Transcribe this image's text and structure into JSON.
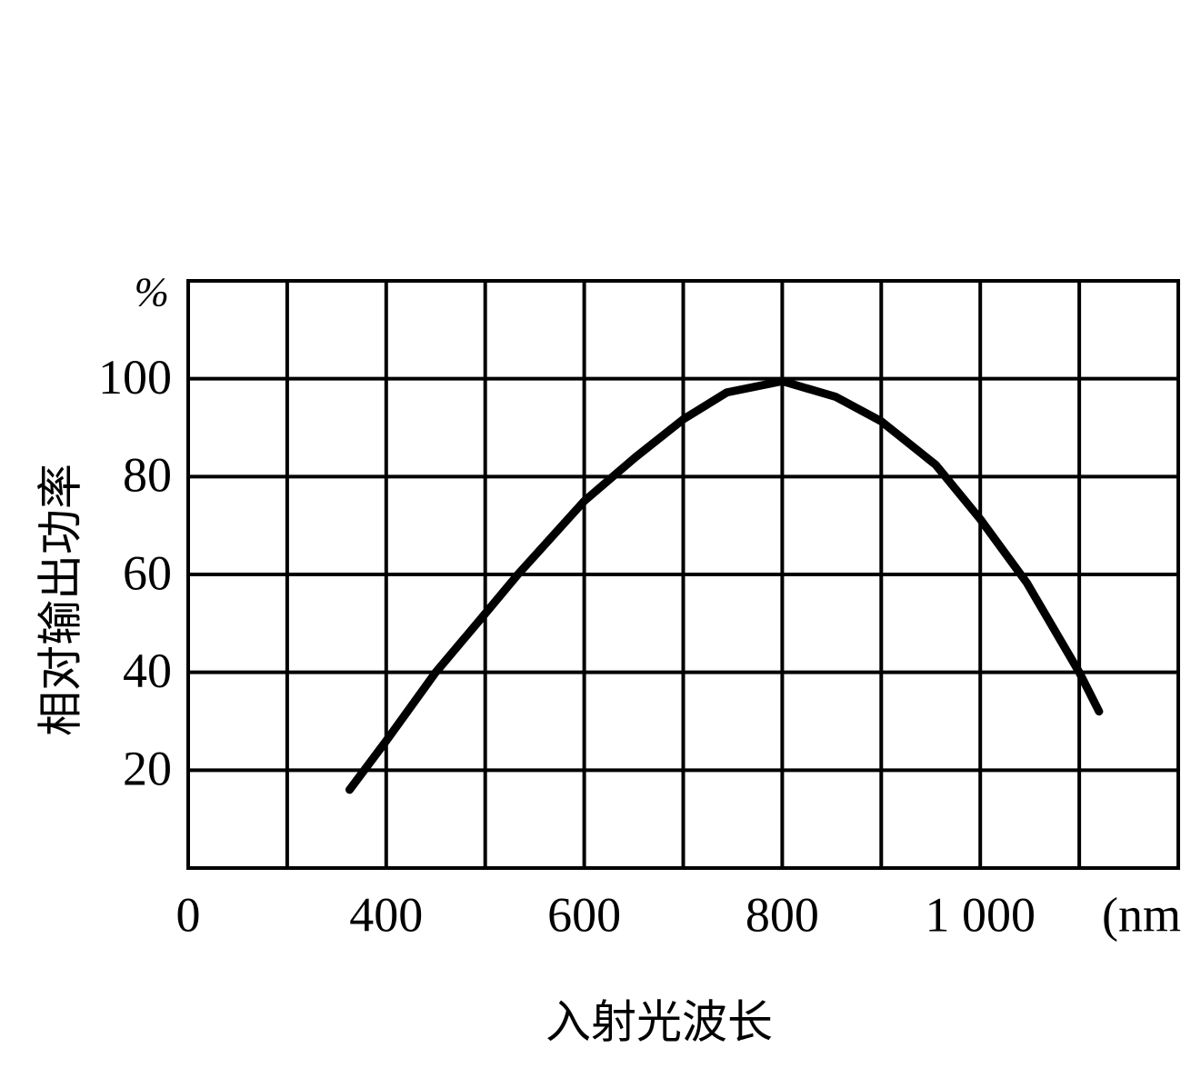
{
  "chart_data": {
    "type": "line",
    "x_label": "入射光波长",
    "y_label": "相对输出功率",
    "x_unit": "(nm)",
    "y_unit": "%",
    "x": [
      363,
      400,
      450,
      500,
      533,
      600,
      652,
      700,
      744,
      800,
      854,
      900,
      955,
      1000,
      1047,
      1100,
      1120
    ],
    "series": [
      {
        "color": "#000000",
        "values": [
          16,
          26,
          40,
          52,
          60,
          75,
          84,
          91.7,
          97.2,
          99.5,
          96.3,
          91.3,
          82.4,
          71.3,
          58.3,
          40,
          32
        ]
      }
    ],
    "xlim": [
      200,
      1200
    ],
    "xticks": [
      {
        "value": 200,
        "label": "0"
      },
      400,
      600,
      800,
      {
        "value": 1000,
        "label": "1 000"
      }
    ],
    "xgrid": [
      300,
      500,
      700,
      900,
      1100
    ],
    "ylim": [
      0,
      120
    ],
    "yticks": [
      20,
      40,
      60,
      80,
      100
    ],
    "grid": true
  }
}
